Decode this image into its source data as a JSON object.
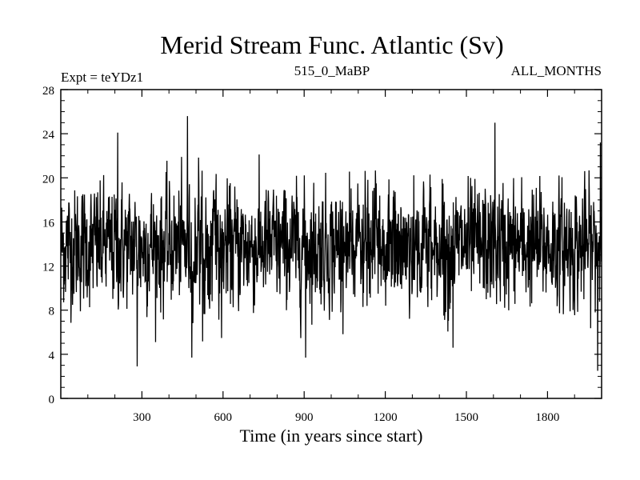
{
  "chart_data": {
    "type": "line",
    "title": "Merid Stream Func. Atlantic (Sv)",
    "subtitle_left": "Expt = teYDz1",
    "subtitle_center": "515_0_MaBP",
    "subtitle_right": "ALL_MONTHS",
    "xlabel": "Time (in years since start)",
    "ylabel": "",
    "xlim": [
      0,
      2000
    ],
    "ylim": [
      0,
      28
    ],
    "xticks": [
      300,
      600,
      900,
      1200,
      1500,
      1800
    ],
    "yticks": [
      0,
      4,
      8,
      12,
      16,
      20,
      24,
      28
    ],
    "grid": false,
    "legend": "none",
    "series": [
      {
        "line_color": "#000000",
        "n_points": 2000,
        "mean": 13.8,
        "spread": 2.6,
        "extremes": [
          {
            "x": 282,
            "y": 2.9
          },
          {
            "x": 468,
            "y": 25.6
          },
          {
            "x": 484,
            "y": 3.7
          },
          {
            "x": 905,
            "y": 3.7
          },
          {
            "x": 1450,
            "y": 4.6
          },
          {
            "x": 1605,
            "y": 25.0
          },
          {
            "x": 1985,
            "y": 2.5
          },
          {
            "x": 1995,
            "y": 23.2
          },
          {
            "x": 210,
            "y": 24.1
          }
        ]
      }
    ]
  }
}
